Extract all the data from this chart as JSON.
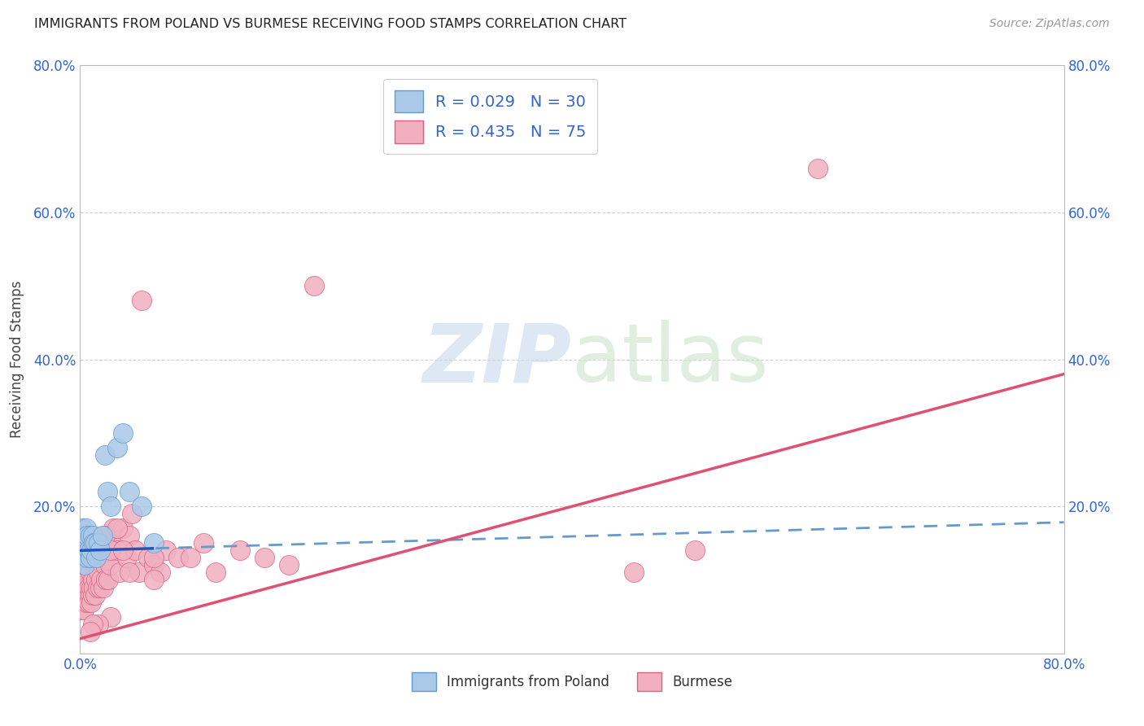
{
  "title": "IMMIGRANTS FROM POLAND VS BURMESE RECEIVING FOOD STAMPS CORRELATION CHART",
  "source": "Source: ZipAtlas.com",
  "ylabel": "Receiving Food Stamps",
  "xlim": [
    0.0,
    0.8
  ],
  "ylim": [
    0.0,
    0.8
  ],
  "xticks": [
    0.0,
    0.2,
    0.4,
    0.6,
    0.8
  ],
  "yticks": [
    0.0,
    0.2,
    0.4,
    0.6,
    0.8
  ],
  "xticklabels": [
    "0.0%",
    "",
    "",
    "",
    "80.0%"
  ],
  "yticklabels": [
    "",
    "20.0%",
    "40.0%",
    "60.0%",
    "80.0%"
  ],
  "right_yticklabels": [
    "",
    "20.0%",
    "40.0%",
    "60.0%",
    "80.0%"
  ],
  "grid_color": "#cccccc",
  "background_color": "#ffffff",
  "poland_color": "#aac8e8",
  "poland_edge_color": "#6699cc",
  "burmese_color": "#f0b0c0",
  "burmese_edge_color": "#e06080",
  "poland_R": 0.029,
  "poland_N": 30,
  "burmese_R": 0.435,
  "burmese_N": 75,
  "poland_line_color": "#2255bb",
  "poland_dash_color": "#6699cc",
  "burmese_line_color": "#e05070",
  "poland_scatter_x": [
    0.001,
    0.002,
    0.002,
    0.003,
    0.003,
    0.004,
    0.004,
    0.005,
    0.005,
    0.006,
    0.006,
    0.007,
    0.008,
    0.008,
    0.009,
    0.01,
    0.011,
    0.012,
    0.013,
    0.015,
    0.016,
    0.018,
    0.02,
    0.022,
    0.025,
    0.03,
    0.035,
    0.04,
    0.05,
    0.06
  ],
  "poland_scatter_y": [
    0.16,
    0.15,
    0.17,
    0.13,
    0.16,
    0.14,
    0.12,
    0.15,
    0.17,
    0.13,
    0.16,
    0.14,
    0.13,
    0.16,
    0.14,
    0.16,
    0.15,
    0.15,
    0.13,
    0.15,
    0.14,
    0.16,
    0.27,
    0.22,
    0.2,
    0.28,
    0.3,
    0.22,
    0.2,
    0.15
  ],
  "burmese_scatter_x": [
    0.001,
    0.001,
    0.001,
    0.002,
    0.002,
    0.002,
    0.003,
    0.003,
    0.003,
    0.004,
    0.004,
    0.005,
    0.005,
    0.005,
    0.006,
    0.006,
    0.007,
    0.007,
    0.008,
    0.008,
    0.009,
    0.009,
    0.01,
    0.01,
    0.011,
    0.012,
    0.013,
    0.014,
    0.015,
    0.016,
    0.017,
    0.018,
    0.019,
    0.02,
    0.021,
    0.022,
    0.023,
    0.024,
    0.025,
    0.027,
    0.03,
    0.032,
    0.035,
    0.038,
    0.04,
    0.042,
    0.045,
    0.048,
    0.05,
    0.055,
    0.06,
    0.065,
    0.07,
    0.08,
    0.09,
    0.1,
    0.11,
    0.13,
    0.15,
    0.17,
    0.19,
    0.02,
    0.025,
    0.03,
    0.035,
    0.04,
    0.45,
    0.5,
    0.06,
    0.06,
    0.025,
    0.015,
    0.01,
    0.008,
    0.6
  ],
  "burmese_scatter_y": [
    0.1,
    0.08,
    0.06,
    0.09,
    0.07,
    0.11,
    0.08,
    0.1,
    0.06,
    0.09,
    0.11,
    0.07,
    0.09,
    0.12,
    0.08,
    0.1,
    0.07,
    0.09,
    0.08,
    0.11,
    0.07,
    0.09,
    0.08,
    0.1,
    0.09,
    0.08,
    0.1,
    0.09,
    0.11,
    0.09,
    0.1,
    0.13,
    0.09,
    0.12,
    0.1,
    0.15,
    0.1,
    0.12,
    0.16,
    0.17,
    0.14,
    0.11,
    0.17,
    0.13,
    0.16,
    0.19,
    0.14,
    0.11,
    0.48,
    0.13,
    0.12,
    0.11,
    0.14,
    0.13,
    0.13,
    0.15,
    0.11,
    0.14,
    0.13,
    0.12,
    0.5,
    0.16,
    0.14,
    0.17,
    0.14,
    0.11,
    0.11,
    0.14,
    0.1,
    0.13,
    0.05,
    0.04,
    0.04,
    0.03,
    0.66
  ]
}
